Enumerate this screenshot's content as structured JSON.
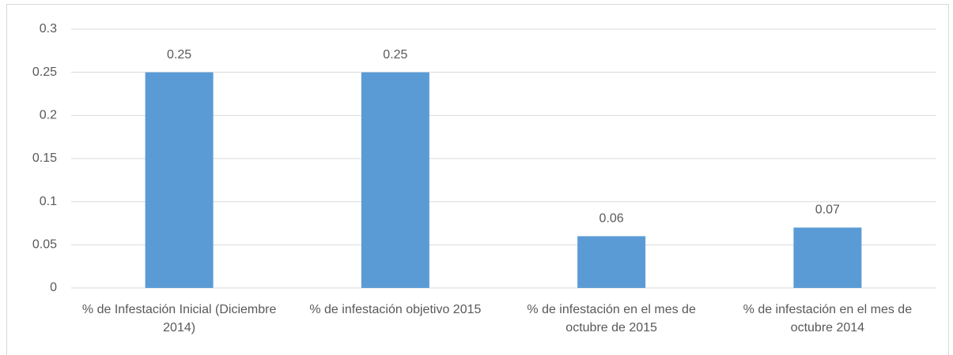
{
  "chart_data": {
    "type": "bar",
    "categories": [
      "% de Infestación Inicial (Diciembre 2014)",
      "% de infestación objetivo 2015",
      "% de infestación en el mes de octubre de 2015",
      "% de infestación en el mes de octubre 2014"
    ],
    "values": [
      0.25,
      0.25,
      0.06,
      0.07
    ],
    "color": "#5b9bd5",
    "ylim": [
      0,
      0.3
    ],
    "yticks": [
      0,
      0.05,
      0.1,
      0.15,
      0.2,
      0.25,
      0.3
    ],
    "grid": true
  }
}
